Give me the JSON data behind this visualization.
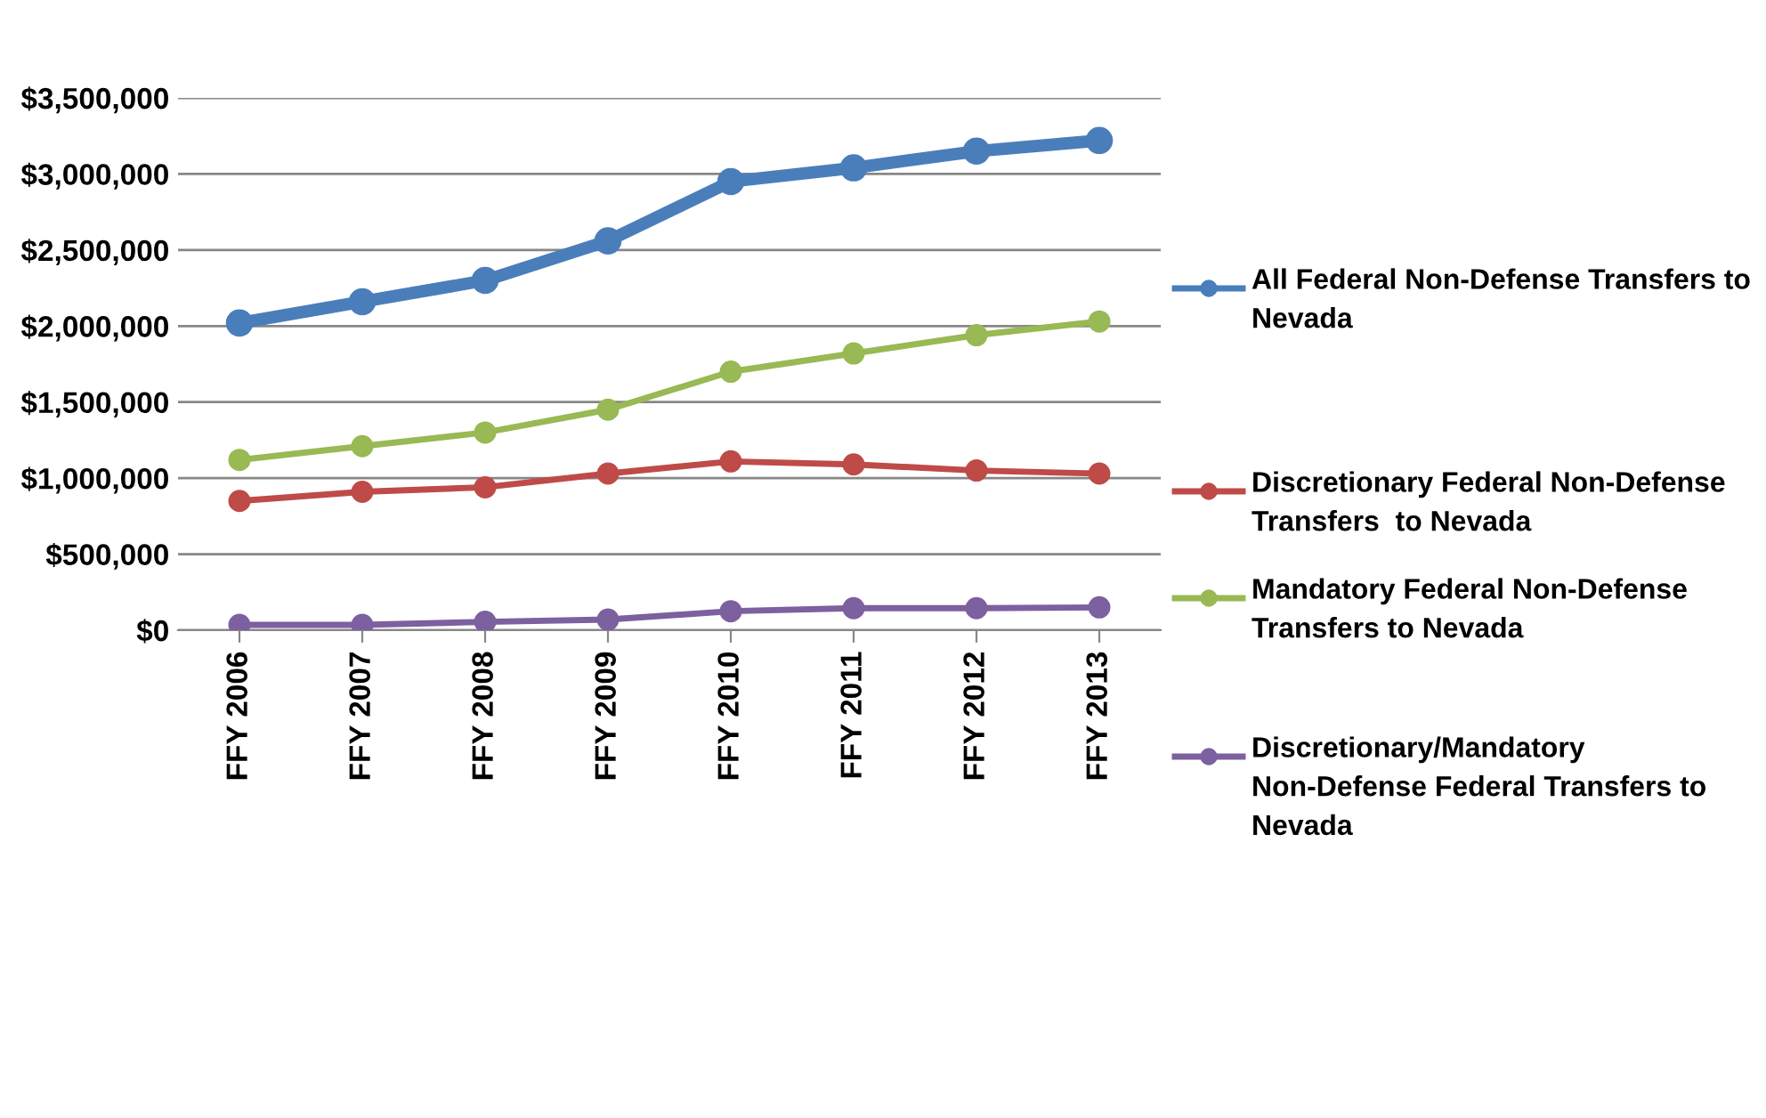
{
  "chart_data": {
    "type": "line",
    "categories": [
      "FFY 2006",
      "FFY 2007",
      "FFY 2008",
      "FFY 2009",
      "FFY 2010",
      "FFY 2011",
      "FFY 2012",
      "FFY 2013"
    ],
    "series": [
      {
        "name": "All Federal Non-Defense Transfers to Nevada",
        "color": "#4a7ebb",
        "values": [
          2020000,
          2160000,
          2300000,
          2560000,
          2950000,
          3040000,
          3150000,
          3220000
        ]
      },
      {
        "name": "Discretionary Federal Non-Defense Transfers  to Nevada",
        "color": "#be4b48",
        "values": [
          850000,
          910000,
          940000,
          1030000,
          1110000,
          1090000,
          1050000,
          1030000
        ]
      },
      {
        "name": "Mandatory Federal Non-Defense Transfers to Nevada",
        "color": "#98b954",
        "values": [
          1120000,
          1210000,
          1300000,
          1450000,
          1700000,
          1820000,
          1940000,
          2030000
        ]
      },
      {
        "name": "Discretionary/Mandatory  Non-Defense Federal Transfers to Nevada",
        "color": "#7d60a0",
        "values": [
          35000,
          35000,
          55000,
          70000,
          125000,
          145000,
          145000,
          150000
        ]
      }
    ],
    "ylim": [
      0,
      3500000
    ],
    "yticks": [
      {
        "value": 0,
        "label": "$0"
      },
      {
        "value": 500000,
        "label": "$500,000"
      },
      {
        "value": 1000000,
        "label": "$1,000,000"
      },
      {
        "value": 1500000,
        "label": "$1,500,000"
      },
      {
        "value": 2000000,
        "label": "$2,000,000"
      },
      {
        "value": 2500000,
        "label": "$2,500,000"
      },
      {
        "value": 3000000,
        "label": "$3,000,000"
      },
      {
        "value": 3500000,
        "label": "$3,500,000"
      }
    ],
    "grid": "y",
    "legend": "right",
    "marker": "circle",
    "line_style": "solid"
  }
}
